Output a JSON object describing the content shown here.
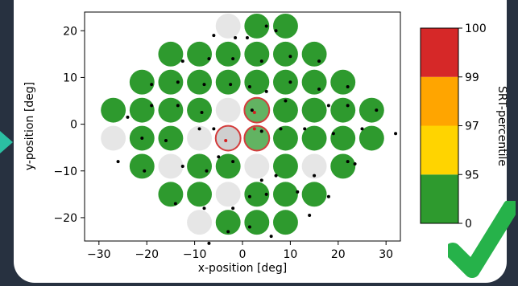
{
  "colors": {
    "background": "#273140",
    "accent_arrow": "#2bbfa3",
    "check": "#26b24a",
    "pass": "#2e9a2e",
    "untested": "#e6e6e6",
    "flagged_fill": "#2e9a2e",
    "flagged_ring": "#d43c3c",
    "fixation_dot": "#000000",
    "red_dot": "#d42020"
  },
  "icons": {
    "left_arrow": "triangle-right-icon",
    "check": "check-mark-icon"
  },
  "chart_data": {
    "type": "scatter",
    "xlabel": "x-position [deg]",
    "ylabel": "y-position [deg]",
    "xlim": [
      -33,
      33
    ],
    "ylim": [
      -25,
      24
    ],
    "xticks": [
      -30,
      -20,
      -10,
      0,
      10,
      20,
      30
    ],
    "yticks": [
      -20,
      -10,
      0,
      10,
      20
    ],
    "grid": false,
    "colorbar": {
      "label": "SRT-percentile",
      "ticks": [
        "0",
        "95",
        "97",
        "99",
        "100"
      ],
      "bands": [
        {
          "from": "0",
          "to": "95",
          "color": "#2e9a2e"
        },
        {
          "from": "95",
          "to": "97",
          "color": "#ffd400"
        },
        {
          "from": "97",
          "to": "99",
          "color": "#ffa500"
        },
        {
          "from": "99",
          "to": "100",
          "color": "#d62828"
        }
      ]
    },
    "stimuli": [
      {
        "x": -3,
        "y": 21,
        "status": "untested"
      },
      {
        "x": 3,
        "y": 21,
        "status": "pass"
      },
      {
        "x": 9,
        "y": 21,
        "status": "pass"
      },
      {
        "x": -15,
        "y": 15,
        "status": "pass"
      },
      {
        "x": -9,
        "y": 15,
        "status": "pass"
      },
      {
        "x": -3,
        "y": 15,
        "status": "pass"
      },
      {
        "x": 3,
        "y": 15,
        "status": "pass"
      },
      {
        "x": 9,
        "y": 15,
        "status": "pass"
      },
      {
        "x": 15,
        "y": 15,
        "status": "pass"
      },
      {
        "x": -21,
        "y": 9,
        "status": "pass"
      },
      {
        "x": -15,
        "y": 9,
        "status": "pass"
      },
      {
        "x": -9,
        "y": 9,
        "status": "pass"
      },
      {
        "x": -3,
        "y": 9,
        "status": "pass"
      },
      {
        "x": 3,
        "y": 9,
        "status": "pass"
      },
      {
        "x": 9,
        "y": 9,
        "status": "pass"
      },
      {
        "x": 15,
        "y": 9,
        "status": "pass"
      },
      {
        "x": 21,
        "y": 9,
        "status": "pass"
      },
      {
        "x": -27,
        "y": 3,
        "status": "pass"
      },
      {
        "x": -21,
        "y": 3,
        "status": "pass"
      },
      {
        "x": -15,
        "y": 3,
        "status": "pass"
      },
      {
        "x": -9,
        "y": 3,
        "status": "pass"
      },
      {
        "x": -3,
        "y": 3,
        "status": "untested"
      },
      {
        "x": 3,
        "y": 3,
        "status": "flagged"
      },
      {
        "x": 9,
        "y": 3,
        "status": "pass"
      },
      {
        "x": 15,
        "y": 3,
        "status": "pass"
      },
      {
        "x": 21,
        "y": 3,
        "status": "pass"
      },
      {
        "x": 27,
        "y": 3,
        "status": "pass"
      },
      {
        "x": -27,
        "y": -3,
        "status": "untested"
      },
      {
        "x": -21,
        "y": -3,
        "status": "pass"
      },
      {
        "x": -15,
        "y": -3,
        "status": "pass"
      },
      {
        "x": -9,
        "y": -3,
        "status": "untested"
      },
      {
        "x": -3,
        "y": -3,
        "status": "flagged-untested"
      },
      {
        "x": 3,
        "y": -3,
        "status": "flagged"
      },
      {
        "x": 9,
        "y": -3,
        "status": "pass"
      },
      {
        "x": 15,
        "y": -3,
        "status": "pass"
      },
      {
        "x": 21,
        "y": -3,
        "status": "pass"
      },
      {
        "x": 27,
        "y": -3,
        "status": "pass"
      },
      {
        "x": -21,
        "y": -9,
        "status": "pass"
      },
      {
        "x": -15,
        "y": -9,
        "status": "untested"
      },
      {
        "x": -9,
        "y": -9,
        "status": "pass"
      },
      {
        "x": -3,
        "y": -9,
        "status": "pass"
      },
      {
        "x": 3,
        "y": -9,
        "status": "untested"
      },
      {
        "x": 9,
        "y": -9,
        "status": "pass"
      },
      {
        "x": 15,
        "y": -9,
        "status": "untested"
      },
      {
        "x": 21,
        "y": -9,
        "status": "pass"
      },
      {
        "x": -15,
        "y": -15,
        "status": "pass"
      },
      {
        "x": -9,
        "y": -15,
        "status": "pass"
      },
      {
        "x": -3,
        "y": -15,
        "status": "untested"
      },
      {
        "x": 3,
        "y": -15,
        "status": "pass"
      },
      {
        "x": 9,
        "y": -15,
        "status": "pass"
      },
      {
        "x": 15,
        "y": -15,
        "status": "pass"
      },
      {
        "x": -9,
        "y": -21,
        "status": "untested"
      },
      {
        "x": -3,
        "y": -21,
        "status": "pass"
      },
      {
        "x": 3,
        "y": -21,
        "status": "pass"
      },
      {
        "x": 9,
        "y": -21,
        "status": "pass"
      }
    ],
    "fixation_points": [
      [
        -6,
        19
      ],
      [
        -1.5,
        18.5
      ],
      [
        1,
        18.5
      ],
      [
        5,
        21
      ],
      [
        7,
        20
      ],
      [
        -12.5,
        13.5
      ],
      [
        -7,
        14
      ],
      [
        -2,
        14
      ],
      [
        4,
        13.5
      ],
      [
        10,
        14.5
      ],
      [
        16,
        13.5
      ],
      [
        -19,
        8.5
      ],
      [
        -13.5,
        9
      ],
      [
        -8,
        8.5
      ],
      [
        -2.5,
        8.5
      ],
      [
        1.5,
        8
      ],
      [
        5,
        7
      ],
      [
        10,
        9
      ],
      [
        16,
        7.5
      ],
      [
        22,
        8
      ],
      [
        -24,
        1.5
      ],
      [
        -19,
        4
      ],
      [
        -13.5,
        4
      ],
      [
        -8.5,
        2.5
      ],
      [
        2,
        3
      ],
      [
        9,
        5
      ],
      [
        18,
        4
      ],
      [
        22,
        4
      ],
      [
        28,
        3
      ],
      [
        -21,
        -3
      ],
      [
        -16,
        -3.5
      ],
      [
        -9,
        -1
      ],
      [
        -6,
        -1
      ],
      [
        4,
        -1.5
      ],
      [
        8,
        -1
      ],
      [
        13,
        -1
      ],
      [
        19,
        -2
      ],
      [
        25,
        -1
      ],
      [
        32,
        -2
      ],
      [
        -26,
        -8
      ],
      [
        -20.5,
        -10
      ],
      [
        -12.5,
        -9
      ],
      [
        -7.5,
        -10
      ],
      [
        -5,
        -7
      ],
      [
        -2,
        -8
      ],
      [
        4,
        -12
      ],
      [
        7,
        -11
      ],
      [
        15,
        -11
      ],
      [
        22,
        -8
      ],
      [
        23.5,
        -8.5
      ],
      [
        -14,
        -17
      ],
      [
        -8,
        -18
      ],
      [
        -2,
        -18
      ],
      [
        1.5,
        -15.5
      ],
      [
        5,
        -15
      ],
      [
        11.5,
        -14.5
      ],
      [
        18,
        -15.5
      ],
      [
        -3,
        -23
      ],
      [
        1.5,
        -22
      ],
      [
        6,
        -24
      ],
      [
        14,
        -19.5
      ],
      [
        -7,
        -25.5
      ]
    ],
    "red_points": [
      [
        -3.5,
        -3.5
      ],
      [
        2.5,
        -1
      ],
      [
        2.5,
        2.5
      ]
    ]
  }
}
